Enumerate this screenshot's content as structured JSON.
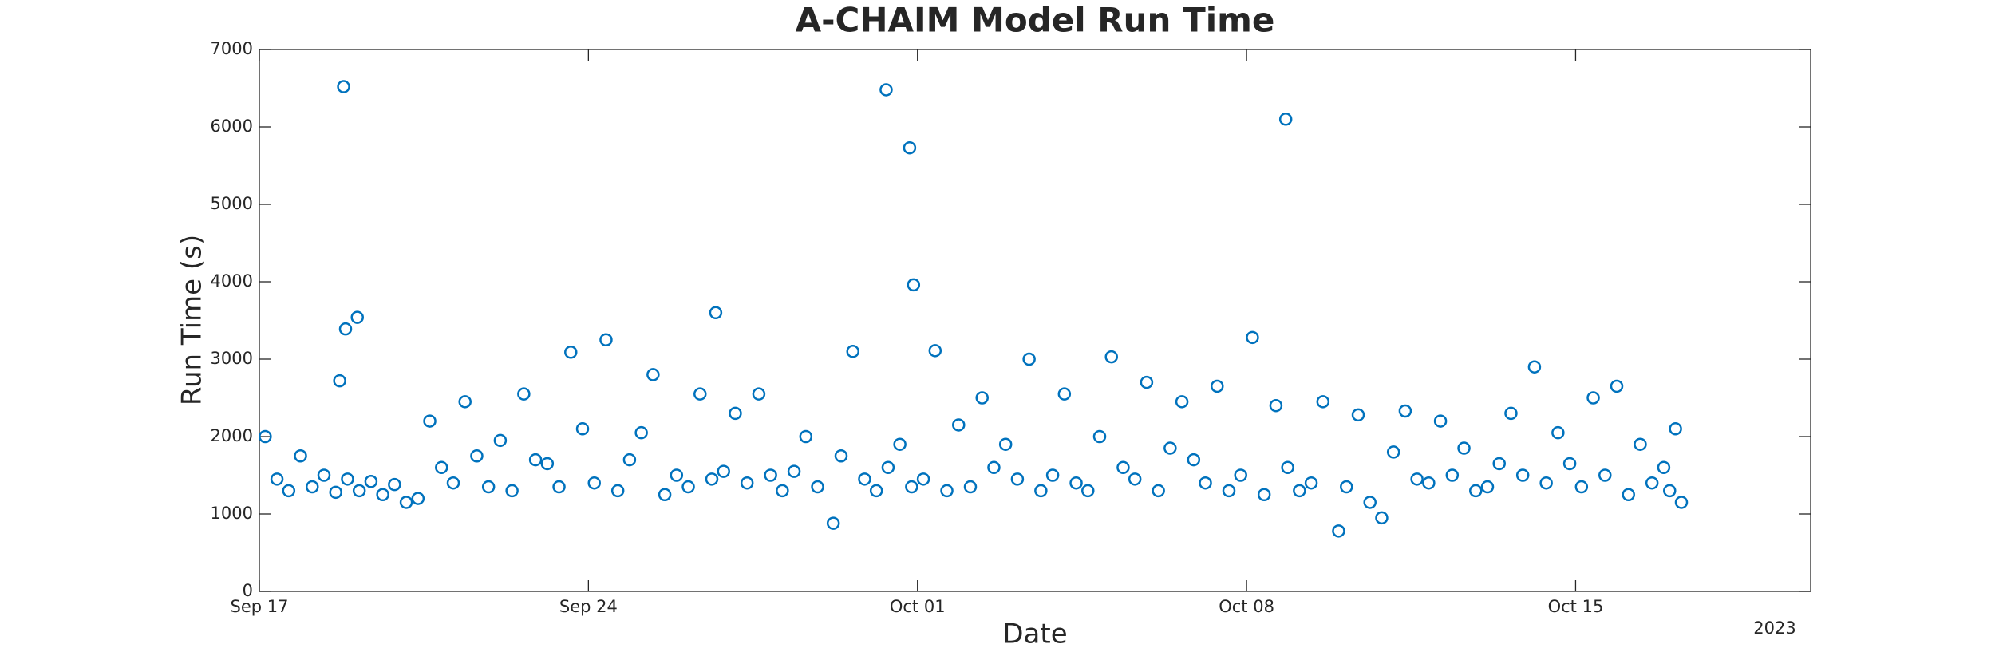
{
  "chart_data": {
    "type": "scatter",
    "title": "A-CHAIM Model Run Time",
    "xlabel": "Date",
    "ylabel": "Run Time (s)",
    "x_year_label": "2023",
    "marker": "open-circle",
    "grid": false,
    "xlim": [
      "2023-09-17T00:00",
      "2023-10-20T00:00"
    ],
    "xticks": [
      {
        "value": "2023-09-17T00:00",
        "label": "Sep 17"
      },
      {
        "value": "2023-09-24T00:00",
        "label": "Sep 24"
      },
      {
        "value": "2023-10-01T00:00",
        "label": "Oct 01"
      },
      {
        "value": "2023-10-08T00:00",
        "label": "Oct 08"
      },
      {
        "value": "2023-10-15T00:00",
        "label": "Oct 15"
      }
    ],
    "ylim": [
      0,
      7000
    ],
    "yticks": [
      0,
      1000,
      2000,
      3000,
      4000,
      5000,
      6000,
      7000
    ],
    "series": [
      {
        "color": "#0072BD",
        "x": [
          "2023-09-17T03:00",
          "2023-09-17T09:00",
          "2023-09-17T15:00",
          "2023-09-17T21:00",
          "2023-09-18T03:00",
          "2023-09-18T09:00",
          "2023-09-18T15:00",
          "2023-09-18T17:00",
          "2023-09-18T19:00",
          "2023-09-18T20:00",
          "2023-09-18T21:00",
          "2023-09-19T02:00",
          "2023-09-19T03:00",
          "2023-09-19T09:00",
          "2023-09-19T15:00",
          "2023-09-19T21:00",
          "2023-09-20T03:00",
          "2023-09-20T09:00",
          "2023-09-20T15:00",
          "2023-09-20T21:00",
          "2023-09-21T03:00",
          "2023-09-21T09:00",
          "2023-09-21T15:00",
          "2023-09-21T21:00",
          "2023-09-22T03:00",
          "2023-09-22T09:00",
          "2023-09-22T15:00",
          "2023-09-22T21:00",
          "2023-09-23T03:00",
          "2023-09-23T09:00",
          "2023-09-23T15:00",
          "2023-09-23T21:00",
          "2023-09-24T03:00",
          "2023-09-24T09:00",
          "2023-09-24T15:00",
          "2023-09-24T21:00",
          "2023-09-25T03:00",
          "2023-09-25T09:00",
          "2023-09-25T15:00",
          "2023-09-25T21:00",
          "2023-09-26T03:00",
          "2023-09-26T09:00",
          "2023-09-26T15:00",
          "2023-09-26T17:00",
          "2023-09-26T21:00",
          "2023-09-27T03:00",
          "2023-09-27T09:00",
          "2023-09-27T15:00",
          "2023-09-27T21:00",
          "2023-09-28T03:00",
          "2023-09-28T09:00",
          "2023-09-28T15:00",
          "2023-09-28T21:00",
          "2023-09-29T05:00",
          "2023-09-29T09:00",
          "2023-09-29T15:00",
          "2023-09-29T21:00",
          "2023-09-30T03:00",
          "2023-09-30T08:00",
          "2023-09-30T09:00",
          "2023-09-30T15:00",
          "2023-09-30T20:00",
          "2023-09-30T21:00",
          "2023-09-30T22:00",
          "2023-10-01T03:00",
          "2023-10-01T09:00",
          "2023-10-01T15:00",
          "2023-10-01T21:00",
          "2023-10-02T03:00",
          "2023-10-02T09:00",
          "2023-10-02T15:00",
          "2023-10-02T21:00",
          "2023-10-03T03:00",
          "2023-10-03T09:00",
          "2023-10-03T15:00",
          "2023-10-03T21:00",
          "2023-10-04T03:00",
          "2023-10-04T09:00",
          "2023-10-04T15:00",
          "2023-10-04T21:00",
          "2023-10-05T03:00",
          "2023-10-05T09:00",
          "2023-10-05T15:00",
          "2023-10-05T21:00",
          "2023-10-06T03:00",
          "2023-10-06T09:00",
          "2023-10-06T15:00",
          "2023-10-06T21:00",
          "2023-10-07T03:00",
          "2023-10-07T09:00",
          "2023-10-07T15:00",
          "2023-10-07T21:00",
          "2023-10-08T03:00",
          "2023-10-08T09:00",
          "2023-10-08T15:00",
          "2023-10-08T20:00",
          "2023-10-08T21:00",
          "2023-10-09T03:00",
          "2023-10-09T09:00",
          "2023-10-09T15:00",
          "2023-10-09T23:00",
          "2023-10-10T03:00",
          "2023-10-10T09:00",
          "2023-10-10T15:00",
          "2023-10-10T21:00",
          "2023-10-11T03:00",
          "2023-10-11T09:00",
          "2023-10-11T15:00",
          "2023-10-11T21:00",
          "2023-10-12T03:00",
          "2023-10-12T09:00",
          "2023-10-12T15:00",
          "2023-10-12T21:00",
          "2023-10-13T03:00",
          "2023-10-13T09:00",
          "2023-10-13T15:00",
          "2023-10-13T21:00",
          "2023-10-14T03:00",
          "2023-10-14T09:00",
          "2023-10-14T15:00",
          "2023-10-14T21:00",
          "2023-10-15T03:00",
          "2023-10-15T09:00",
          "2023-10-15T15:00",
          "2023-10-15T21:00",
          "2023-10-16T03:00",
          "2023-10-16T09:00",
          "2023-10-16T15:00",
          "2023-10-16T21:00",
          "2023-10-17T00:00",
          "2023-10-17T03:00",
          "2023-10-17T06:00"
        ],
        "values": [
          2000,
          1450,
          1300,
          1750,
          1350,
          1500,
          1280,
          2720,
          6520,
          3390,
          1450,
          3540,
          1300,
          1420,
          1250,
          1380,
          1150,
          1200,
          2200,
          1600,
          1400,
          2450,
          1750,
          1350,
          1950,
          1300,
          2550,
          1700,
          1650,
          1350,
          3090,
          2100,
          1400,
          3250,
          1300,
          1700,
          2050,
          2800,
          1250,
          1500,
          1350,
          2550,
          1450,
          3600,
          1550,
          2300,
          1400,
          2550,
          1500,
          1300,
          1550,
          2000,
          1350,
          880,
          1750,
          3100,
          1450,
          1300,
          6480,
          1600,
          1900,
          5730,
          1350,
          3960,
          1450,
          3110,
          1300,
          2150,
          1350,
          2500,
          1600,
          1900,
          1450,
          3000,
          1300,
          1500,
          2550,
          1400,
          1300,
          2000,
          3030,
          1600,
          1450,
          2700,
          1300,
          1850,
          2450,
          1700,
          1400,
          2650,
          1300,
          1500,
          3280,
          1250,
          2400,
          6100,
          1600,
          1300,
          1400,
          2450,
          780,
          1350,
          2280,
          1150,
          950,
          1800,
          2330,
          1450,
          1400,
          2200,
          1500,
          1850,
          1300,
          1350,
          1650,
          2300,
          1500,
          2900,
          1400,
          2050,
          1650,
          1350,
          2500,
          1500,
          2650,
          1250,
          1900,
          1400,
          1600,
          1300,
          2100,
          1150
        ]
      }
    ]
  }
}
